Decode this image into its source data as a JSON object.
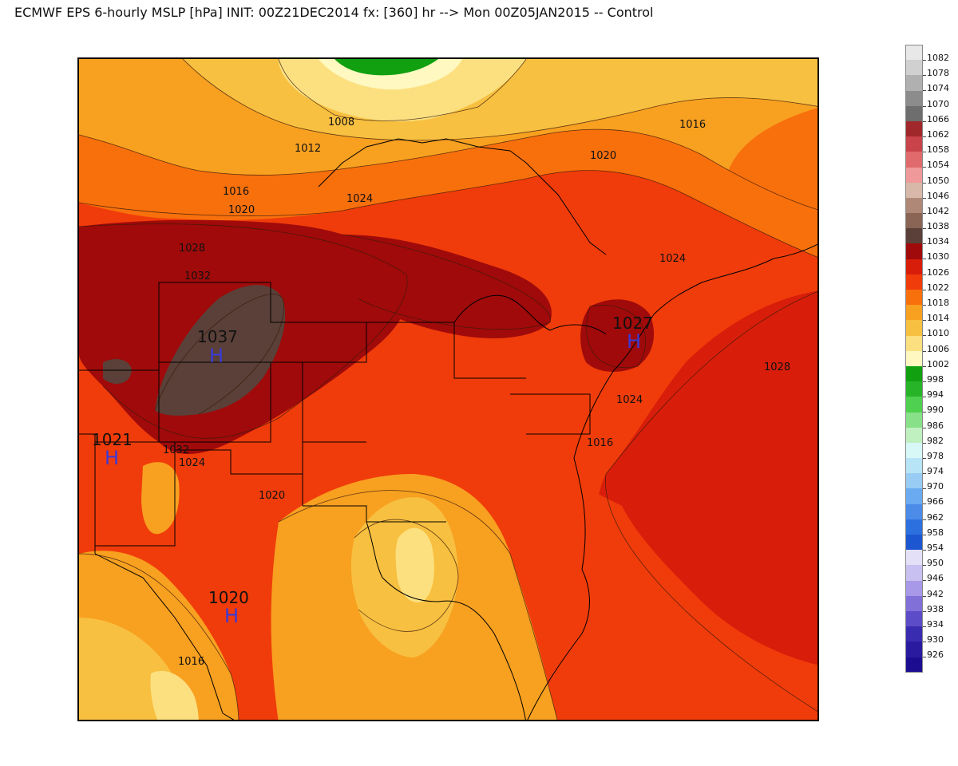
{
  "title": "ECMWF EPS 6-hourly MSLP [hPa] INIT: 00Z21DEC2014 fx: [360] hr --> Mon 00Z05JAN2015 -- Control",
  "contour_labels": [
    "1008",
    "1012",
    "1016",
    "1020",
    "1024",
    "1028",
    "1032",
    "1016",
    "1020",
    "1024",
    "1028",
    "1024",
    "1016",
    "1032",
    "1024",
    "1020",
    "1016"
  ],
  "centers": [
    {
      "value": "1037",
      "symbol": "H"
    },
    {
      "value": "1027",
      "symbol": "H"
    },
    {
      "value": "1021",
      "symbol": "H"
    },
    {
      "value": "1020",
      "symbol": "H"
    }
  ],
  "colorbar": [
    {
      "label": "1082",
      "color": "#e8e8e8"
    },
    {
      "label": "1078",
      "color": "#d0d0d0"
    },
    {
      "label": "1074",
      "color": "#b0b0b0"
    },
    {
      "label": "1070",
      "color": "#8c8c8c"
    },
    {
      "label": "1066",
      "color": "#6e6e6e"
    },
    {
      "label": "1062",
      "color": "#a0282a"
    },
    {
      "label": "1058",
      "color": "#c8444a"
    },
    {
      "label": "1054",
      "color": "#e06a6c"
    },
    {
      "label": "1050",
      "color": "#f0999a"
    },
    {
      "label": "1046",
      "color": "#d8b8a8"
    },
    {
      "label": "1042",
      "color": "#b08878"
    },
    {
      "label": "1038",
      "color": "#8a6454"
    },
    {
      "label": "1034",
      "color": "#5a4038"
    },
    {
      "label": "1030",
      "color": "#a00a0a"
    },
    {
      "label": "1026",
      "color": "#d81e0a"
    },
    {
      "label": "1022",
      "color": "#f03c0a"
    },
    {
      "label": "1018",
      "color": "#f8700c"
    },
    {
      "label": "1014",
      "color": "#f8a020"
    },
    {
      "label": "1010",
      "color": "#f8c040"
    },
    {
      "label": "1006",
      "color": "#fce080"
    },
    {
      "label": "1002",
      "color": "#fff8c0"
    },
    {
      "label": "998",
      "color": "#10a010"
    },
    {
      "label": "994",
      "color": "#28b428"
    },
    {
      "label": "990",
      "color": "#50d050"
    },
    {
      "label": "986",
      "color": "#88e088"
    },
    {
      "label": "982",
      "color": "#c0f0c0"
    },
    {
      "label": "978",
      "color": "#d8f8f8"
    },
    {
      "label": "974",
      "color": "#b8e4f8"
    },
    {
      "label": "970",
      "color": "#98ccf4"
    },
    {
      "label": "966",
      "color": "#6aaaf0"
    },
    {
      "label": "962",
      "color": "#4c8ce8"
    },
    {
      "label": "958",
      "color": "#2c70e0"
    },
    {
      "label": "954",
      "color": "#1c56d0"
    },
    {
      "label": "950",
      "color": "#e4e0f8"
    },
    {
      "label": "946",
      "color": "#c8c0f0"
    },
    {
      "label": "942",
      "color": "#a898e8"
    },
    {
      "label": "938",
      "color": "#8070d8"
    },
    {
      "label": "934",
      "color": "#5c4cc8"
    },
    {
      "label": "930",
      "color": "#3a2cb0"
    },
    {
      "label": "926",
      "color": "#2a1aa0"
    },
    {
      "label": "",
      "color": "#1c0c90"
    }
  ],
  "fill_colors": {
    "c1002": "#fff8c0",
    "c1006": "#fce080",
    "c1010": "#f8c040",
    "c1014": "#f8a020",
    "c1018": "#f8700c",
    "c1022": "#f03c0a",
    "c1026": "#d81e0a",
    "c1030": "#a00a0a",
    "c1034": "#5a4038",
    "green": "#10a010"
  }
}
